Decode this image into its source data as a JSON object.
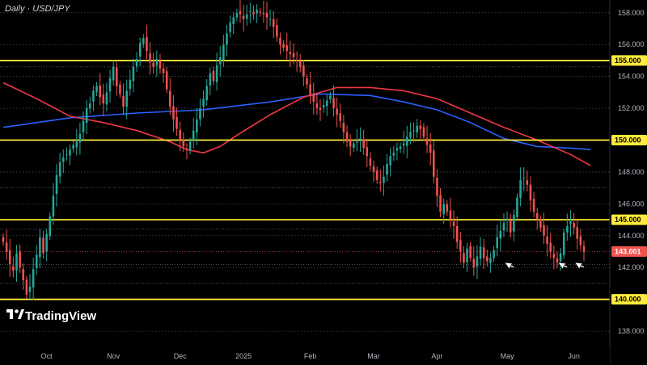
{
  "chart_data": {
    "type": "candlestick",
    "title": "Daily · USD/JPY",
    "brand": "TradingView",
    "ylim": [
      137.6,
      158.8
    ],
    "y_ticks": [
      138,
      140,
      142,
      144,
      146,
      148,
      150,
      152,
      154,
      156,
      158
    ],
    "y_tick_labels": [
      "138.000",
      "140.000",
      "142.000",
      "144.000",
      "146.000",
      "148.000",
      "150.000",
      "152.000",
      "154.000",
      "156.000",
      "158.000"
    ],
    "x_ticks": [
      "Oct",
      "Nov",
      "Dec",
      "2025",
      "Feb",
      "Mar",
      "Apr",
      "May",
      "Jun"
    ],
    "x_tick_index": [
      13,
      33,
      53,
      72,
      92,
      111,
      130,
      151,
      171
    ],
    "levels": [
      {
        "value": 155.0,
        "label": "155.000"
      },
      {
        "value": 150.0,
        "label": "150.000"
      },
      {
        "value": 145.0,
        "label": "145.000"
      },
      {
        "value": 140.0,
        "label": "140.000"
      }
    ],
    "last_price": {
      "value": 143.001,
      "label": "143.001"
    },
    "colors": {
      "up": "#26a69a",
      "down": "#ef5350",
      "ma_fast": "#f23645",
      "ma_slow": "#2962ff",
      "level": "#ffeb3b",
      "background": "#000000"
    },
    "closes": [
      143.6,
      143.0,
      142.2,
      141.8,
      142.9,
      142.0,
      141.2,
      140.3,
      140.8,
      141.9,
      142.8,
      143.9,
      142.9,
      144.1,
      145.2,
      146.5,
      147.8,
      148.6,
      148.9,
      149.1,
      149.4,
      149.7,
      149.9,
      150.4,
      151.2,
      152.0,
      152.3,
      153.1,
      153.4,
      152.7,
      152.3,
      153.0,
      153.9,
      154.6,
      153.4,
      152.9,
      152.1,
      153.1,
      153.8,
      154.6,
      155.1,
      156.1,
      156.4,
      155.6,
      154.9,
      154.6,
      155.1,
      154.5,
      154.2,
      153.2,
      152.1,
      151.3,
      150.7,
      150.0,
      149.6,
      149.4,
      149.9,
      150.6,
      151.3,
      152.0,
      152.6,
      153.4,
      154.2,
      153.7,
      154.7,
      155.2,
      156.0,
      156.7,
      157.4,
      157.7,
      158.0,
      157.9,
      157.6,
      157.9,
      158.1,
      157.9,
      158.2,
      158.0,
      157.9,
      157.7,
      157.6,
      157.1,
      156.5,
      156.0,
      155.8,
      155.6,
      155.4,
      155.2,
      155.0,
      154.6,
      154.0,
      153.5,
      152.8,
      152.4,
      152.0,
      151.9,
      152.2,
      152.5,
      152.8,
      152.0,
      151.6,
      151.2,
      150.5,
      149.9,
      149.6,
      149.8,
      149.9,
      150.1,
      149.5,
      149.0,
      148.4,
      148.0,
      147.5,
      147.3,
      147.7,
      148.5,
      149.0,
      149.2,
      149.5,
      149.6,
      149.8,
      150.2,
      150.5,
      150.6,
      150.9,
      150.7,
      150.2,
      149.7,
      149.2,
      147.7,
      146.5,
      145.5,
      146.0,
      145.5,
      145.0,
      144.6,
      143.6,
      143.0,
      142.3,
      143.2,
      142.6,
      142.0,
      142.7,
      143.3,
      142.6,
      142.4,
      142.6,
      143.1,
      143.9,
      144.3,
      144.8,
      145.0,
      144.2,
      145.3,
      146.4,
      147.5,
      147.6,
      147.2,
      146.2,
      145.5,
      145.0,
      144.5,
      144.0,
      143.5,
      143.0,
      142.6,
      142.3,
      142.9,
      144.2,
      144.6,
      144.9,
      144.5,
      143.8,
      143.4,
      143.0
    ],
    "ma_fast": [
      [
        0,
        153.6
      ],
      [
        10,
        152.6
      ],
      [
        20,
        151.5
      ],
      [
        30,
        151.1
      ],
      [
        40,
        150.6
      ],
      [
        50,
        149.9
      ],
      [
        55,
        149.4
      ],
      [
        60,
        149.2
      ],
      [
        65,
        149.6
      ],
      [
        70,
        150.3
      ],
      [
        80,
        151.6
      ],
      [
        90,
        152.7
      ],
      [
        100,
        153.3
      ],
      [
        110,
        153.3
      ],
      [
        120,
        153.1
      ],
      [
        130,
        152.6
      ],
      [
        140,
        151.7
      ],
      [
        150,
        150.8
      ],
      [
        160,
        150.0
      ],
      [
        170,
        149.1
      ],
      [
        176,
        148.4
      ]
    ],
    "ma_slow": [
      [
        0,
        150.8
      ],
      [
        20,
        151.4
      ],
      [
        40,
        151.7
      ],
      [
        60,
        151.9
      ],
      [
        80,
        152.4
      ],
      [
        95,
        152.9
      ],
      [
        110,
        152.8
      ],
      [
        120,
        152.4
      ],
      [
        130,
        151.9
      ],
      [
        140,
        151.1
      ],
      [
        150,
        150.1
      ],
      [
        160,
        149.6
      ],
      [
        170,
        149.5
      ],
      [
        176,
        149.4
      ]
    ],
    "annotations": [
      {
        "type": "arrow",
        "index": 151,
        "price": 142.1
      },
      {
        "type": "arrow",
        "index": 167,
        "price": 142.1
      },
      {
        "type": "arrow",
        "index": 172,
        "price": 142.1
      }
    ]
  }
}
